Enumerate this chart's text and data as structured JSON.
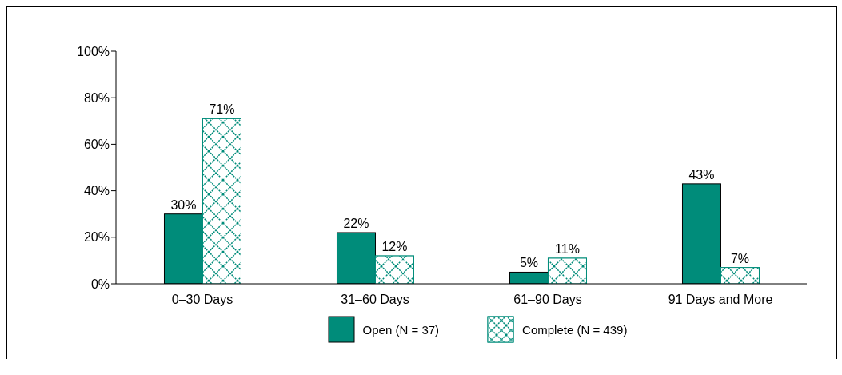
{
  "chart_data": {
    "type": "bar",
    "categories": [
      "0–30 Days",
      "31–60 Days",
      "61–90 Days",
      "91 Days and More"
    ],
    "series": [
      {
        "name": "Open (N = 37)",
        "color": "#008c7a",
        "values": [
          30,
          22,
          5,
          43
        ]
      },
      {
        "name": "Complete (N = 439)",
        "color": "#008c7a",
        "values": [
          71,
          12,
          11,
          7
        ]
      }
    ],
    "ylim": [
      0,
      100
    ],
    "yticks": [
      {
        "value": 0,
        "label": "0%"
      },
      {
        "value": 20,
        "label": "20%"
      },
      {
        "value": 40,
        "label": "40%"
      },
      {
        "value": 60,
        "label": "60%"
      },
      {
        "value": 80,
        "label": "80%"
      },
      {
        "value": 100,
        "label": "100%"
      }
    ],
    "value_labels": [
      [
        "30%",
        "22%",
        "5%",
        "43%"
      ],
      [
        "71%",
        "12%",
        "11%",
        "7%"
      ]
    ],
    "grid": false,
    "legend": "bottom"
  }
}
